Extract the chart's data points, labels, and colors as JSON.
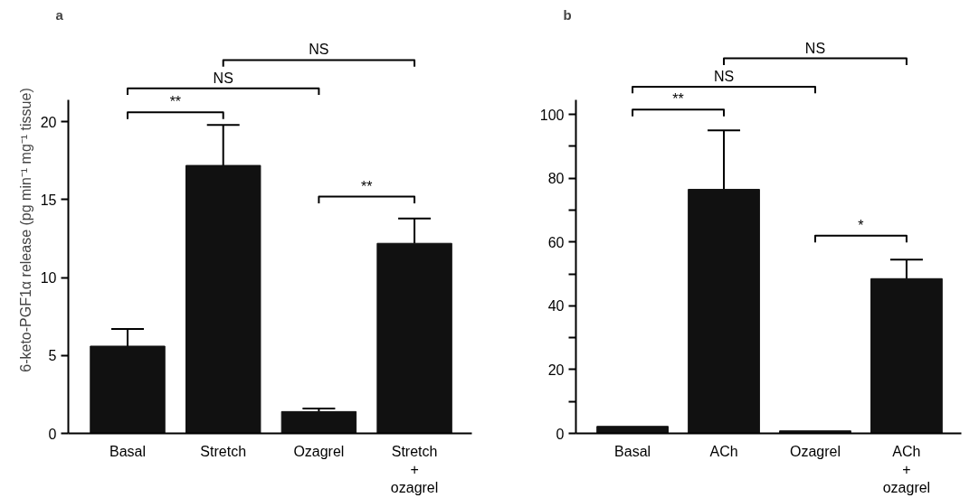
{
  "chart_data": [
    {
      "type": "bar",
      "title": "a",
      "ylabel": "6-keto-PGF1α release (pg min⁻¹ mg⁻¹ tissue)",
      "categories": [
        "Basal",
        "Stretch",
        "Ozagrel",
        "Stretch\n+\nozagrel"
      ],
      "values": [
        5.6,
        17.2,
        1.4,
        12.2
      ],
      "color": "#111111",
      "errors": [
        [
          5.6,
          6.7
        ],
        [
          17.2,
          19.8
        ],
        [
          1.4,
          1.6
        ],
        [
          12.2,
          13.8
        ]
      ],
      "ylim": [
        0,
        21.4
      ],
      "yticks": [
        0,
        5,
        10,
        15,
        20
      ],
      "annotations": [
        "**",
        "NS",
        "NS",
        "**"
      ]
    },
    {
      "type": "bar",
      "title": "b",
      "categories": [
        "Basal",
        "ACh",
        "Ozagrel",
        "ACh\n+\nozagrel"
      ],
      "values": [
        2.2,
        76.5,
        0.8,
        48.5
      ],
      "color": "#111111",
      "errors": [
        null,
        [
          76.5,
          95
        ],
        null,
        [
          48.5,
          54.5
        ]
      ],
      "ylim": [
        0,
        104.5
      ],
      "yticks": [
        0,
        {
          "value": 10,
          "label": null
        },
        20,
        {
          "value": 30,
          "label": null
        },
        40,
        {
          "value": 50,
          "label": null
        },
        60,
        {
          "value": 70,
          "label": null
        },
        80,
        {
          "value": 90,
          "label": null
        },
        100
      ],
      "annotations": [
        "**",
        "NS",
        "NS",
        "*"
      ]
    }
  ]
}
